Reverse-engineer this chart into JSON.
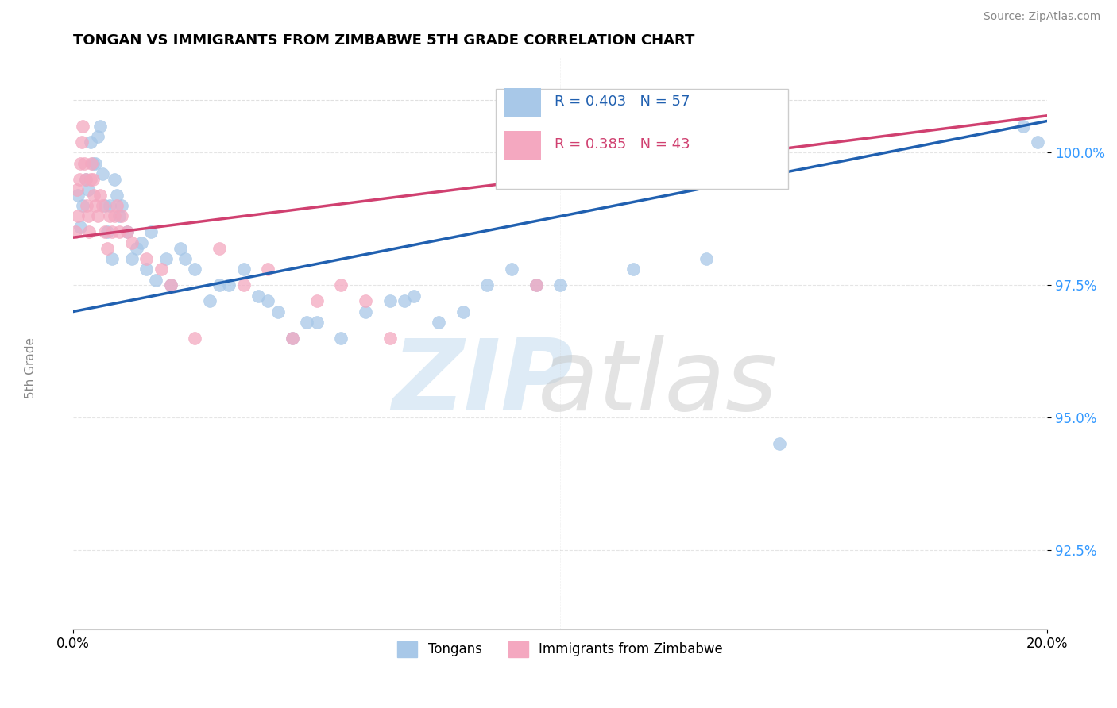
{
  "title": "TONGAN VS IMMIGRANTS FROM ZIMBABWE 5TH GRADE CORRELATION CHART",
  "source": "Source: ZipAtlas.com",
  "ylabel": "5th Grade",
  "legend_label1": "Tongans",
  "legend_label2": "Immigrants from Zimbabwe",
  "r1": 0.403,
  "n1": 57,
  "r2": 0.385,
  "n2": 43,
  "blue_color": "#a8c8e8",
  "pink_color": "#f4a8c0",
  "blue_line_color": "#2060b0",
  "pink_line_color": "#d04070",
  "xmin": 0.0,
  "xmax": 20.0,
  "ymin": 91.0,
  "ymax": 101.8,
  "yticks": [
    92.5,
    95.0,
    97.5,
    100.0
  ],
  "ytick_labels": [
    "92.5%",
    "95.0%",
    "97.5%",
    "100.0%"
  ],
  "blue_line_x0": 0.0,
  "blue_line_y0": 97.0,
  "blue_line_x1": 20.0,
  "blue_line_y1": 100.6,
  "pink_line_x0": 0.0,
  "pink_line_y0": 98.4,
  "pink_line_x1": 20.0,
  "pink_line_y1": 100.7,
  "blue_points_x": [
    0.1,
    0.15,
    0.2,
    0.25,
    0.3,
    0.35,
    0.4,
    0.45,
    0.5,
    0.55,
    0.6,
    0.65,
    0.7,
    0.75,
    0.8,
    0.85,
    0.9,
    0.95,
    1.0,
    1.1,
    1.2,
    1.3,
    1.4,
    1.5,
    1.6,
    1.7,
    1.9,
    2.0,
    2.2,
    2.5,
    2.8,
    3.0,
    3.2,
    3.5,
    4.0,
    4.2,
    4.5,
    5.0,
    5.5,
    6.0,
    6.5,
    6.8,
    7.0,
    7.5,
    8.0,
    8.5,
    9.0,
    9.5,
    10.0,
    11.5,
    13.0,
    14.5,
    19.5,
    19.8,
    3.8,
    4.8,
    2.3
  ],
  "blue_points_y": [
    99.2,
    98.6,
    99.0,
    99.5,
    99.3,
    100.2,
    99.8,
    99.8,
    100.3,
    100.5,
    99.6,
    99.0,
    98.5,
    99.0,
    98.0,
    99.5,
    99.2,
    98.8,
    99.0,
    98.5,
    98.0,
    98.2,
    98.3,
    97.8,
    98.5,
    97.6,
    98.0,
    97.5,
    98.2,
    97.8,
    97.2,
    97.5,
    97.5,
    97.8,
    97.2,
    97.0,
    96.5,
    96.8,
    96.5,
    97.0,
    97.2,
    97.2,
    97.3,
    96.8,
    97.0,
    97.5,
    97.8,
    97.5,
    97.5,
    97.8,
    98.0,
    94.5,
    100.5,
    100.2,
    97.3,
    96.8,
    98.0
  ],
  "pink_points_x": [
    0.05,
    0.08,
    0.1,
    0.12,
    0.15,
    0.18,
    0.2,
    0.22,
    0.25,
    0.28,
    0.3,
    0.32,
    0.35,
    0.38,
    0.4,
    0.42,
    0.45,
    0.5,
    0.55,
    0.6,
    0.65,
    0.7,
    0.75,
    0.8,
    0.85,
    0.9,
    0.95,
    1.0,
    1.1,
    1.2,
    1.5,
    1.8,
    2.0,
    2.5,
    3.0,
    3.5,
    4.0,
    4.5,
    5.0,
    5.5,
    6.0,
    6.5,
    9.5
  ],
  "pink_points_y": [
    98.5,
    99.3,
    98.8,
    99.5,
    99.8,
    100.2,
    100.5,
    99.8,
    99.5,
    99.0,
    98.8,
    98.5,
    99.5,
    99.8,
    99.5,
    99.2,
    99.0,
    98.8,
    99.2,
    99.0,
    98.5,
    98.2,
    98.8,
    98.5,
    98.8,
    99.0,
    98.5,
    98.8,
    98.5,
    98.3,
    98.0,
    97.8,
    97.5,
    96.5,
    98.2,
    97.5,
    97.8,
    96.5,
    97.2,
    97.5,
    97.2,
    96.5,
    97.5
  ]
}
